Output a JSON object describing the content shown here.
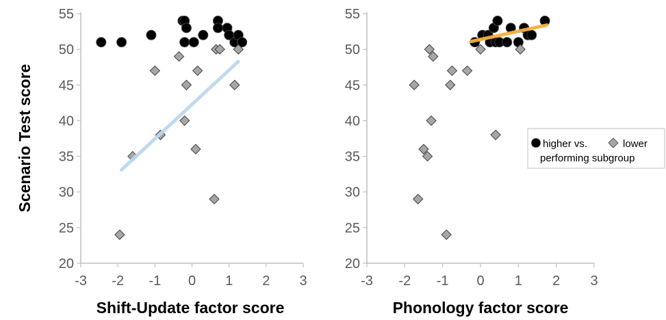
{
  "chart_data": [
    {
      "type": "scatter",
      "title": "",
      "xlabel": "Shift-Update factor score",
      "ylabel": "Scenario Test score",
      "xlim": [
        -3,
        3
      ],
      "ylim": [
        20,
        55
      ],
      "xticks": [
        -3,
        -2,
        -1,
        0,
        1,
        2,
        3
      ],
      "yticks": [
        20,
        25,
        30,
        35,
        40,
        45,
        50,
        55
      ],
      "grid": false,
      "series": [
        {
          "name": "higher",
          "marker": "circle",
          "color": "#000000",
          "points": [
            [
              -2.45,
              51
            ],
            [
              -1.9,
              51
            ],
            [
              -1.1,
              52
            ],
            [
              -0.25,
              54
            ],
            [
              -0.2,
              54
            ],
            [
              -0.15,
              53
            ],
            [
              -0.2,
              51
            ],
            [
              0.05,
              51
            ],
            [
              0.3,
              52
            ],
            [
              0.7,
              54
            ],
            [
              0.7,
              53
            ],
            [
              0.95,
              53
            ],
            [
              1.0,
              52
            ],
            [
              1.15,
              51
            ],
            [
              1.25,
              52
            ],
            [
              1.35,
              51
            ]
          ]
        },
        {
          "name": "lower",
          "marker": "diamond",
          "color": "#a6a6a6",
          "points": [
            [
              -1.95,
              24
            ],
            [
              -1.6,
              35
            ],
            [
              -1.0,
              47
            ],
            [
              -0.85,
              38
            ],
            [
              -0.35,
              49
            ],
            [
              -0.2,
              40
            ],
            [
              -0.15,
              45
            ],
            [
              0.1,
              36
            ],
            [
              0.15,
              47
            ],
            [
              0.6,
              29
            ],
            [
              0.65,
              50
            ],
            [
              0.75,
              50
            ],
            [
              1.15,
              45
            ],
            [
              1.25,
              50
            ]
          ]
        }
      ],
      "trendlines": [
        {
          "series": "lower",
          "color": "#bdd7ee",
          "x": [
            -1.9,
            1.25
          ],
          "y": [
            33.1,
            48.3
          ]
        }
      ]
    },
    {
      "type": "scatter",
      "title": "",
      "xlabel": "Phonology factor score",
      "ylabel": "",
      "xlim": [
        -3,
        3
      ],
      "ylim": [
        20,
        55
      ],
      "xticks": [
        -3,
        -2,
        -1,
        0,
        1,
        2,
        3
      ],
      "yticks": [
        20,
        25,
        30,
        35,
        40,
        45,
        50,
        55
      ],
      "grid": false,
      "series": [
        {
          "name": "higher",
          "marker": "circle",
          "color": "#000000",
          "points": [
            [
              -0.15,
              51
            ],
            [
              0.05,
              52
            ],
            [
              0.2,
              52
            ],
            [
              0.25,
              51
            ],
            [
              0.35,
              53
            ],
            [
              0.4,
              51
            ],
            [
              0.45,
              54
            ],
            [
              0.5,
              51
            ],
            [
              0.7,
              51
            ],
            [
              0.8,
              53
            ],
            [
              1.0,
              51
            ],
            [
              1.15,
              53
            ],
            [
              1.25,
              52
            ],
            [
              1.35,
              52
            ],
            [
              1.7,
              54
            ]
          ]
        },
        {
          "name": "lower",
          "marker": "diamond",
          "color": "#a6a6a6",
          "points": [
            [
              -1.75,
              45
            ],
            [
              -1.65,
              29
            ],
            [
              -1.5,
              36
            ],
            [
              -1.4,
              35
            ],
            [
              -1.35,
              50
            ],
            [
              -1.3,
              40
            ],
            [
              -1.25,
              49
            ],
            [
              -0.9,
              24
            ],
            [
              -0.8,
              45
            ],
            [
              -0.75,
              47
            ],
            [
              -0.35,
              47
            ],
            [
              0.0,
              50
            ],
            [
              0.4,
              38
            ],
            [
              1.05,
              50
            ]
          ]
        }
      ],
      "trendlines": [
        {
          "series": "higher",
          "color": "#f4b13f",
          "x": [
            -0.25,
            1.75
          ],
          "y": [
            51.1,
            53.4
          ]
        }
      ]
    }
  ],
  "legend": {
    "placement": "right",
    "line1": {
      "higher_label": "higher  vs.",
      "lower_label": "lower"
    },
    "line2": "performing subgroup"
  }
}
